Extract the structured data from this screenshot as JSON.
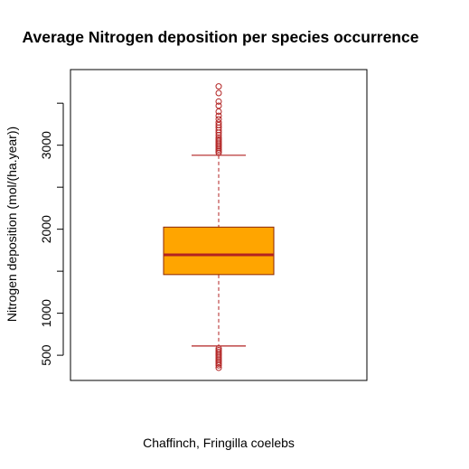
{
  "chart_data": {
    "type": "boxplot",
    "title": "Average Nitrogen deposition per species occurrence",
    "xlabel": "Chaffinch, Fringilla coelebs",
    "ylabel": "Nitrogen deposition (mol/(ha.year))",
    "ylim": [
      200,
      3900
    ],
    "y_ticks": [
      500,
      1000,
      2000,
      3000
    ],
    "y_minor_ticks": [
      1500,
      2500,
      3500
    ],
    "grid": false,
    "series": [
      {
        "stats": {
          "q1": 1460,
          "median": 1695,
          "q3": 2025,
          "whisker_low": 610,
          "whisker_high": 2880
        },
        "outliers": [
          3700,
          3620,
          3520,
          3470,
          3400,
          3350,
          3310,
          3270,
          3240,
          3210,
          3180,
          3150,
          3120,
          3090,
          3070,
          3050,
          3030,
          3010,
          2990,
          2970,
          2950,
          2930,
          2910,
          580,
          560,
          540,
          520,
          500,
          480,
          460,
          440,
          420,
          400,
          380,
          350
        ]
      }
    ],
    "colors": {
      "box_fill": "#ffa500",
      "box_border": "#8b2500",
      "median": "#b22222",
      "whisker": "#b22222",
      "outlier": "#b22222",
      "axis": "#000000"
    }
  }
}
